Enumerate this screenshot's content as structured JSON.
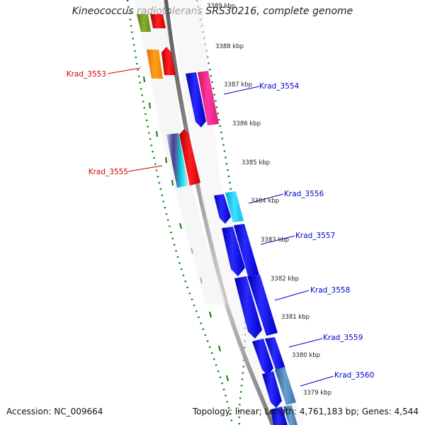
{
  "header": {
    "title": "Kineococcus radiotolerans SRS30216, complete genome"
  },
  "footer": {
    "accession": "Accession: NC_009664",
    "stats": "Topology: linear; Length: 4,761,183 bp; Genes: 4,544"
  },
  "scale_labels": [
    "3389 kbp",
    "3388 kbp",
    "3387 kbp",
    "3386 kbp",
    "3385 kbp",
    "3384 kbp",
    "3383 kbp",
    "3382 kbp",
    "3381 kbp",
    "3380 kbp",
    "3379 kbp"
  ],
  "reverse_genes": [
    "Krad_3553",
    "Krad_3555"
  ],
  "forward_genes": [
    "Krad_3554",
    "Krad_3556",
    "Krad_3557",
    "Krad_3558",
    "Krad_3559",
    "Krad_3560"
  ],
  "colors": {
    "forward_label": "#0000cc",
    "reverse_label": "#cc0000",
    "scale_ticks": "#008000",
    "backbone": "#888888"
  }
}
